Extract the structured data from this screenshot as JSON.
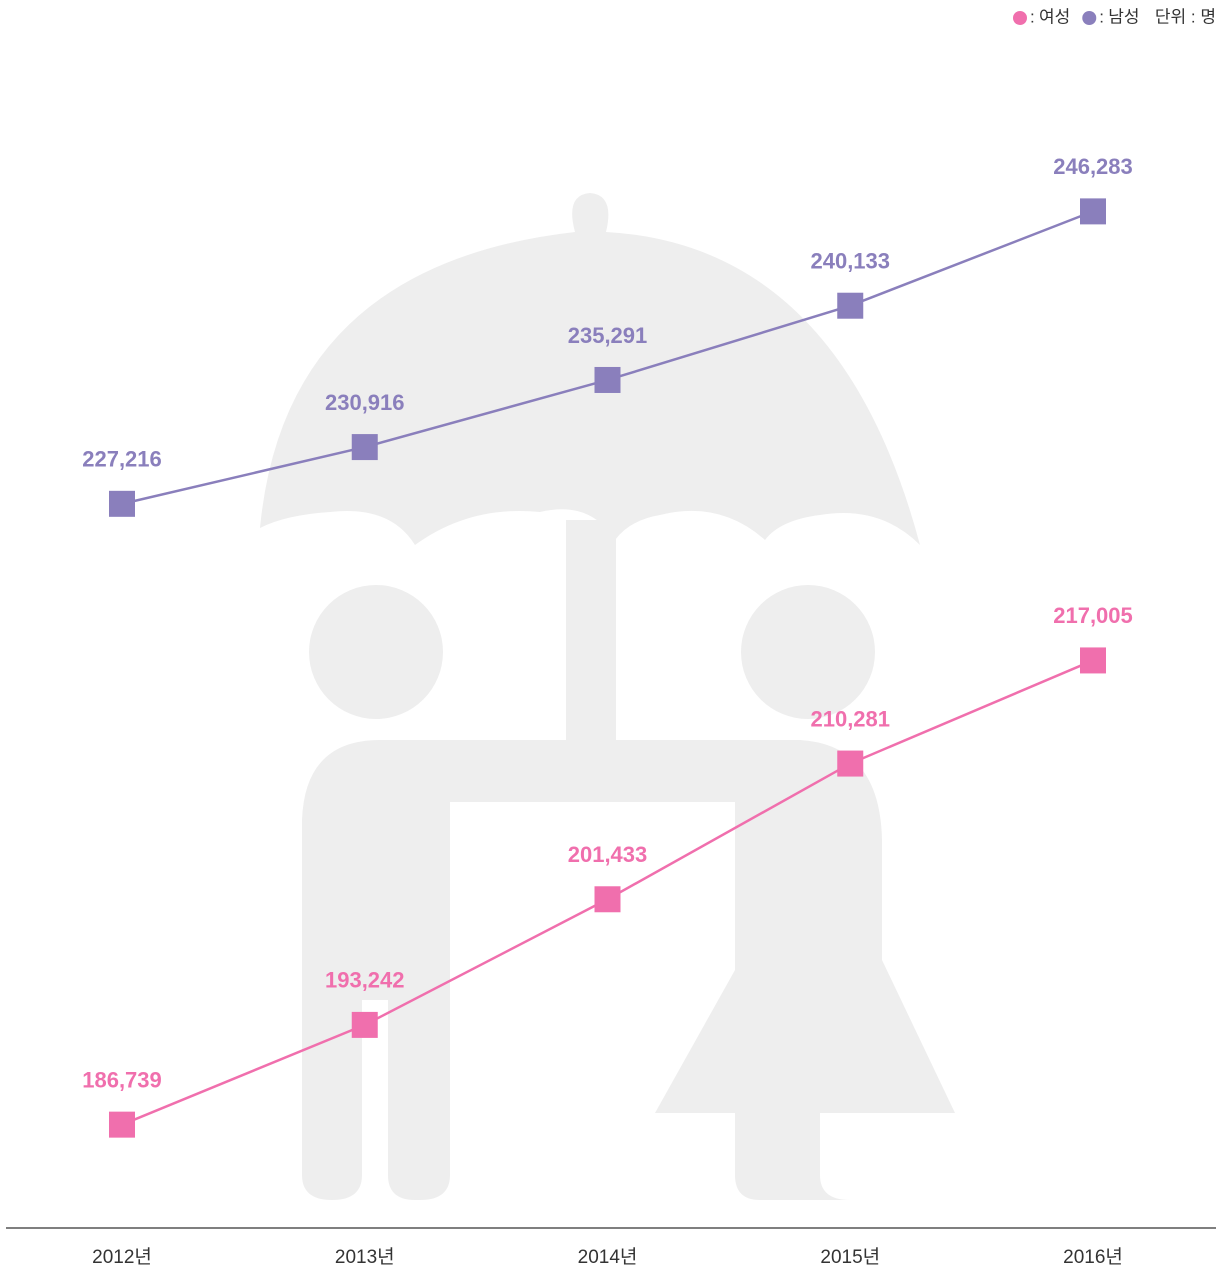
{
  "chart_data": {
    "type": "line",
    "unit_label": "단위 : 명",
    "categories": [
      "2012년",
      "2013년",
      "2014년",
      "2015년",
      "2016년"
    ],
    "series": [
      {
        "name": "여성",
        "color": "#f06fad",
        "values": [
          186739,
          193242,
          201433,
          210281,
          217005
        ],
        "value_labels": [
          "186,739",
          "193,242",
          "201,433",
          "210,281",
          "217,005"
        ]
      },
      {
        "name": "남성",
        "color": "#8a7fbc",
        "values": [
          227216,
          230916,
          235291,
          240133,
          246283
        ],
        "value_labels": [
          "227,216",
          "230,916",
          "235,291",
          "240,133",
          "246,283"
        ]
      }
    ],
    "ylim": [
      180000,
      260000
    ],
    "legend": "top-right"
  }
}
